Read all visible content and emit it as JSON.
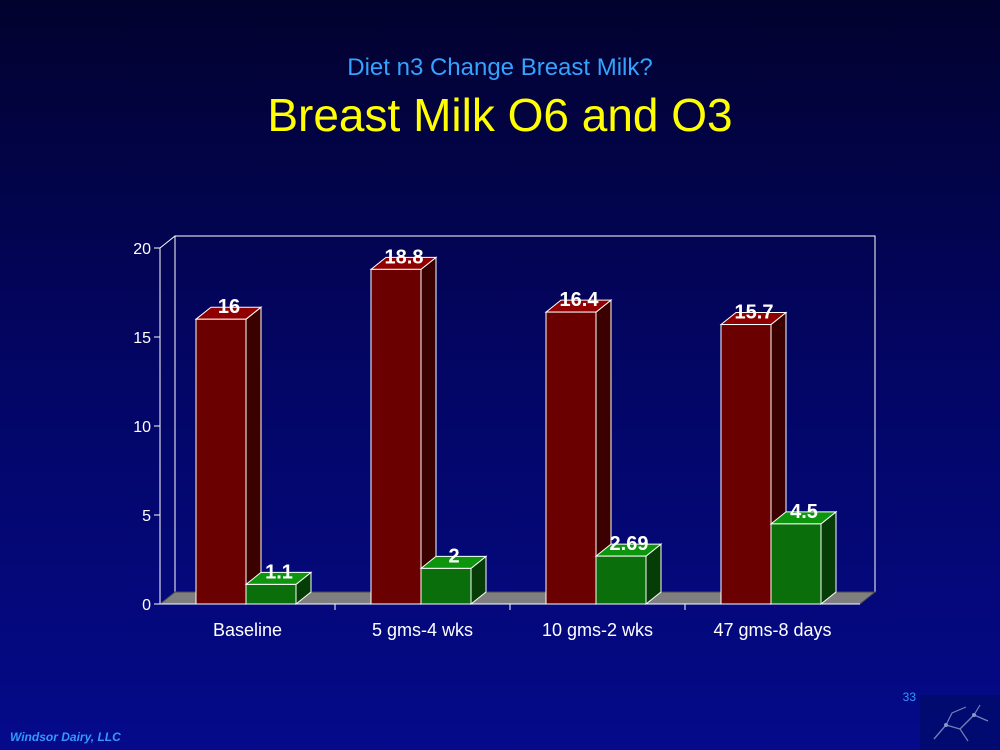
{
  "slide": {
    "subtitle": "Diet n3 Change Breast Milk?",
    "title": "Breast Milk O6 and O3",
    "page_number": "33",
    "footer": "Windsor Dairy, LLC"
  },
  "colors": {
    "o6": "#6b0000",
    "o3": "#0a6e0a"
  },
  "chart_data": {
    "type": "bar",
    "categories": [
      "Baseline",
      "5 gms-4 wks",
      "10 gms-2 wks",
      "47 gms-8 days"
    ],
    "series": [
      {
        "values": [
          16,
          18.8,
          16.4,
          15.7
        ],
        "labels": [
          "16",
          "18.8",
          "16.4",
          "15.7"
        ]
      },
      {
        "values": [
          1.1,
          2,
          2.69,
          4.5
        ],
        "labels": [
          "1.1",
          "2",
          "2.69",
          "4.5"
        ]
      }
    ],
    "ylim": [
      0,
      20
    ],
    "yticks": [
      "0",
      "5",
      "10",
      "15",
      "20"
    ],
    "grid": false,
    "legend": "none"
  }
}
